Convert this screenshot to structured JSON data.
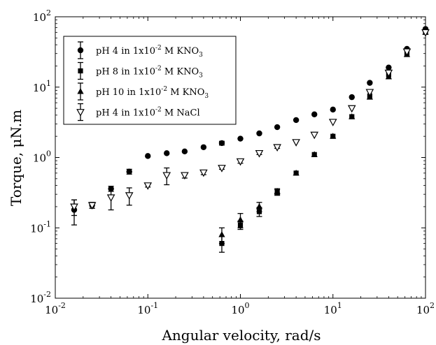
{
  "chart_data": {
    "type": "scatter",
    "x_scale": "log",
    "y_scale": "log",
    "xlabel": "Angular velocity, rad/s",
    "ylabel": "Torque, μN.m",
    "xlim": [
      0.01,
      100
    ],
    "ylim": [
      0.01,
      100
    ],
    "x_ticks": [
      {
        "value": 0.01,
        "base": "10",
        "exp": "-2"
      },
      {
        "value": 0.1,
        "base": "10",
        "exp": "-1"
      },
      {
        "value": 1,
        "base": "10",
        "exp": "0"
      },
      {
        "value": 10,
        "base": "10",
        "exp": "1"
      },
      {
        "value": 100,
        "base": "10",
        "exp": "2"
      }
    ],
    "y_ticks": [
      {
        "value": 0.01,
        "base": "10",
        "exp": "-2"
      },
      {
        "value": 0.1,
        "base": "10",
        "exp": "-1"
      },
      {
        "value": 1,
        "base": "10",
        "exp": "0"
      },
      {
        "value": 10,
        "base": "10",
        "exp": "1"
      },
      {
        "value": 100,
        "base": "10",
        "exp": "2"
      }
    ],
    "grid": false,
    "legend_position": "top-left",
    "series": [
      {
        "name": "pH 4 in 1x10-2 M KNO3",
        "label_parts": {
          "a": "pH 4 in 1x10",
          "sup": "-2",
          "b": " M KNO",
          "sub": "3"
        },
        "marker": "circle",
        "points": [
          {
            "x": 0.016,
            "y": 0.18,
            "err": 0.07
          },
          {
            "x": 0.025,
            "y": 0.21,
            "err": 0.02
          },
          {
            "x": 0.04,
            "y": 0.36,
            "err": 0.03
          },
          {
            "x": 0.063,
            "y": 0.63,
            "err": 0.05
          },
          {
            "x": 0.1,
            "y": 1.05
          },
          {
            "x": 0.16,
            "y": 1.15
          },
          {
            "x": 0.25,
            "y": 1.22
          },
          {
            "x": 0.4,
            "y": 1.4
          },
          {
            "x": 0.63,
            "y": 1.6,
            "err": 0.1
          },
          {
            "x": 1.0,
            "y": 1.85
          },
          {
            "x": 1.6,
            "y": 2.2
          },
          {
            "x": 2.5,
            "y": 2.7
          },
          {
            "x": 4.0,
            "y": 3.4
          },
          {
            "x": 6.3,
            "y": 4.1
          },
          {
            "x": 10,
            "y": 4.8
          },
          {
            "x": 16,
            "y": 7.2
          },
          {
            "x": 25,
            "y": 11.5
          },
          {
            "x": 40,
            "y": 19
          },
          {
            "x": 63,
            "y": 35
          },
          {
            "x": 100,
            "y": 67
          }
        ]
      },
      {
        "name": "pH 8 in 1x10-2 M KNO3",
        "label_parts": {
          "a": "pH 8 in 1x10",
          "sup": "-2",
          "b": " M KNO",
          "sub": "3"
        },
        "marker": "square",
        "points": [
          {
            "x": 0.63,
            "y": 0.06,
            "err": 0.015
          },
          {
            "x": 1.0,
            "y": 0.11,
            "err": 0.015
          },
          {
            "x": 1.6,
            "y": 0.17,
            "err": 0.025
          },
          {
            "x": 2.5,
            "y": 0.32,
            "err": 0.03
          },
          {
            "x": 4.0,
            "y": 0.6
          },
          {
            "x": 6.3,
            "y": 1.1
          },
          {
            "x": 10,
            "y": 2.0
          },
          {
            "x": 16,
            "y": 3.8
          },
          {
            "x": 25,
            "y": 7.5
          },
          {
            "x": 40,
            "y": 15
          },
          {
            "x": 63,
            "y": 30
          },
          {
            "x": 100,
            "y": 62
          }
        ]
      },
      {
        "name": "pH 10 in 1x10-2 M KNO3",
        "label_parts": {
          "a": "pH 10 in 1x10",
          "sup": "-2",
          "b": " M KNO",
          "sub": "3"
        },
        "marker": "triangle-up",
        "points": [
          {
            "x": 0.63,
            "y": 0.08,
            "err": 0.02
          },
          {
            "x": 1.0,
            "y": 0.13,
            "err": 0.03
          },
          {
            "x": 1.6,
            "y": 0.2,
            "err": 0.03
          },
          {
            "x": 2.5,
            "y": 0.33,
            "err": 0.03
          },
          {
            "x": 4.0,
            "y": 0.6
          },
          {
            "x": 6.3,
            "y": 1.1
          },
          {
            "x": 10,
            "y": 2.0
          },
          {
            "x": 16,
            "y": 3.8
          },
          {
            "x": 25,
            "y": 7.2
          },
          {
            "x": 40,
            "y": 14
          },
          {
            "x": 63,
            "y": 29
          },
          {
            "x": 100,
            "y": 60
          }
        ]
      },
      {
        "name": "pH 4 in 1x10-2 M NaCl",
        "label_parts": {
          "a": "pH 4 in 1x10",
          "sup": "-2",
          "b": " M NaCl",
          "sub": ""
        },
        "marker": "triangle-down-open",
        "points": [
          {
            "x": 0.016,
            "y": 0.2,
            "err": 0.05
          },
          {
            "x": 0.025,
            "y": 0.21,
            "err": 0.02
          },
          {
            "x": 0.04,
            "y": 0.27,
            "err": 0.09
          },
          {
            "x": 0.063,
            "y": 0.29,
            "err": 0.08
          },
          {
            "x": 0.1,
            "y": 0.4,
            "err": 0.02
          },
          {
            "x": 0.16,
            "y": 0.56,
            "err": 0.15
          },
          {
            "x": 0.25,
            "y": 0.56,
            "err": 0.05
          },
          {
            "x": 0.4,
            "y": 0.61,
            "err": 0.04
          },
          {
            "x": 0.63,
            "y": 0.71,
            "err": 0.03
          },
          {
            "x": 1.0,
            "y": 0.88,
            "err": 0.05
          },
          {
            "x": 1.6,
            "y": 1.15,
            "err": 0.05
          },
          {
            "x": 2.5,
            "y": 1.4,
            "err": 0.05
          },
          {
            "x": 4.0,
            "y": 1.65
          },
          {
            "x": 6.3,
            "y": 2.1
          },
          {
            "x": 10,
            "y": 3.2
          },
          {
            "x": 16,
            "y": 5.0
          },
          {
            "x": 25,
            "y": 8.5
          },
          {
            "x": 40,
            "y": 16
          },
          {
            "x": 63,
            "y": 32
          },
          {
            "x": 100,
            "y": 60
          }
        ]
      }
    ]
  }
}
